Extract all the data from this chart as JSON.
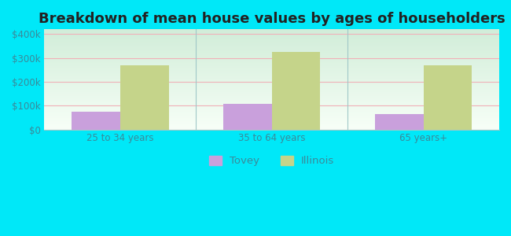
{
  "title": "Breakdown of mean house values by ages of householders",
  "categories": [
    "25 to 34 years",
    "35 to 64 years",
    "65 years+"
  ],
  "tovey_values": [
    75000,
    108000,
    65000
  ],
  "illinois_values": [
    270000,
    325000,
    270000
  ],
  "tovey_color": "#c9a0dc",
  "illinois_color": "#c5d48a",
  "background_outer": "#00e8f8",
  "background_top": "#d0edd8",
  "background_bottom": "#f8fff8",
  "yticks": [
    0,
    100000,
    200000,
    300000,
    400000
  ],
  "ytick_labels": [
    "$0",
    "$100k",
    "$200k",
    "$300k",
    "$400k"
  ],
  "ylim": [
    0,
    420000
  ],
  "bar_width": 0.32,
  "legend_labels": [
    "Tovey",
    "Illinois"
  ],
  "title_fontsize": 13,
  "tick_fontsize": 8.5,
  "legend_fontsize": 9.5,
  "grid_color": "#f0b0b8",
  "divider_color": "#a0c8c8",
  "tick_color": "#3a8a9a"
}
